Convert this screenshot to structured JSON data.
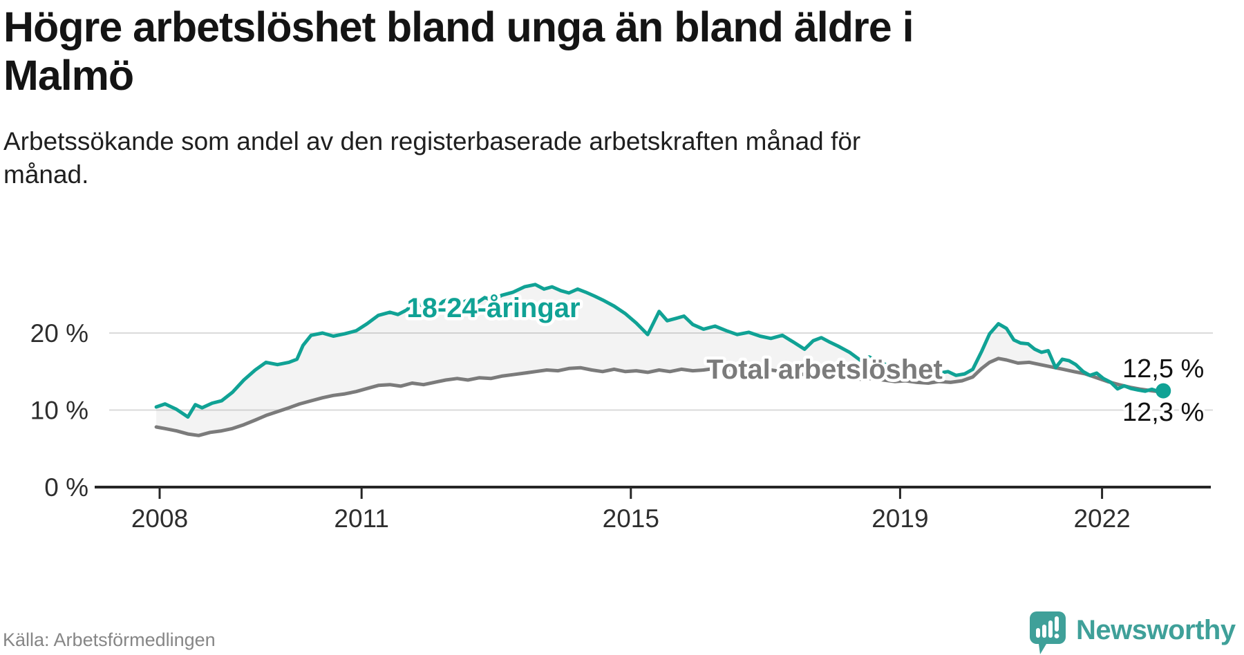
{
  "header": {
    "title_lines": [
      "Högre arbetslöshet bland unga än bland äldre i",
      "Malmö"
    ],
    "subtitle_lines": [
      "Arbetssökande som andel av den registerbaserade arbetskraften månad för",
      "månad."
    ]
  },
  "footer": {
    "source": "Källa: Arbetsförmedlingen",
    "brand": "Newsworthy"
  },
  "colors": {
    "accent_teal": "#10A295",
    "line_gray": "#7B7B7B",
    "fill_between": "rgba(125,125,125,0.09)",
    "grid": "#DADADA",
    "axis": "#262626",
    "tick_text": "#2E2E2E",
    "value_text": "#111111",
    "source_text": "#868686",
    "brand_teal": "#3FA099"
  },
  "chart_data": {
    "type": "line",
    "title": "Högre arbetslöshet bland unga än bland äldre i Malmö",
    "subtitle": "Arbetssökande som andel av den registerbaserade arbetskraften månad för månad.",
    "source": "Källa: Arbetsförmedlingen",
    "x_unit": "year (monthly observations)",
    "xlim": [
      2007.95,
      2023.3
    ],
    "ylim": [
      0,
      27
    ],
    "grid": "horizontal",
    "legend_position": "inline-labels",
    "y_ticks": [
      {
        "value": 0,
        "label": "0 %"
      },
      {
        "value": 10,
        "label": "10 %"
      },
      {
        "value": 20,
        "label": "20 %"
      }
    ],
    "x_ticks": [
      {
        "value": 2008,
        "label": "2008"
      },
      {
        "value": 2011,
        "label": "2011"
      },
      {
        "value": 2015,
        "label": "2015"
      },
      {
        "value": 2019,
        "label": "2019"
      },
      {
        "value": 2022,
        "label": "2022"
      }
    ],
    "series": [
      {
        "name": "18-24-åringar",
        "color": "#10A295",
        "end_label": "12,5 %",
        "end_value": 12.5,
        "points": [
          [
            2007.95,
            10.4
          ],
          [
            2008.08,
            10.8
          ],
          [
            2008.25,
            10.1
          ],
          [
            2008.42,
            9.1
          ],
          [
            2008.53,
            10.7
          ],
          [
            2008.63,
            10.3
          ],
          [
            2008.78,
            10.9
          ],
          [
            2008.92,
            11.2
          ],
          [
            2009.08,
            12.3
          ],
          [
            2009.25,
            13.9
          ],
          [
            2009.42,
            15.2
          ],
          [
            2009.58,
            16.2
          ],
          [
            2009.75,
            15.9
          ],
          [
            2009.92,
            16.2
          ],
          [
            2010.04,
            16.6
          ],
          [
            2010.13,
            18.4
          ],
          [
            2010.25,
            19.7
          ],
          [
            2010.42,
            20.0
          ],
          [
            2010.58,
            19.6
          ],
          [
            2010.75,
            19.9
          ],
          [
            2010.92,
            20.3
          ],
          [
            2011.08,
            21.2
          ],
          [
            2011.25,
            22.3
          ],
          [
            2011.42,
            22.7
          ],
          [
            2011.54,
            22.4
          ],
          [
            2011.67,
            23.0
          ],
          [
            2011.79,
            24.0
          ],
          [
            2011.92,
            23.5
          ],
          [
            2012.08,
            22.9
          ],
          [
            2012.21,
            24.1
          ],
          [
            2012.33,
            24.5
          ],
          [
            2012.46,
            23.8
          ],
          [
            2012.58,
            24.3
          ],
          [
            2012.71,
            23.9
          ],
          [
            2012.83,
            24.6
          ],
          [
            2012.96,
            24.2
          ],
          [
            2013.08,
            24.9
          ],
          [
            2013.25,
            25.3
          ],
          [
            2013.42,
            26.0
          ],
          [
            2013.58,
            26.3
          ],
          [
            2013.71,
            25.7
          ],
          [
            2013.83,
            26.0
          ],
          [
            2013.96,
            25.5
          ],
          [
            2014.08,
            25.2
          ],
          [
            2014.21,
            25.7
          ],
          [
            2014.33,
            25.3
          ],
          [
            2014.46,
            24.8
          ],
          [
            2014.58,
            24.3
          ],
          [
            2014.75,
            23.5
          ],
          [
            2014.92,
            22.5
          ],
          [
            2015.08,
            21.3
          ],
          [
            2015.25,
            19.8
          ],
          [
            2015.42,
            22.8
          ],
          [
            2015.54,
            21.6
          ],
          [
            2015.67,
            21.9
          ],
          [
            2015.79,
            22.2
          ],
          [
            2015.92,
            21.1
          ],
          [
            2016.08,
            20.5
          ],
          [
            2016.25,
            20.9
          ],
          [
            2016.42,
            20.3
          ],
          [
            2016.58,
            19.8
          ],
          [
            2016.75,
            20.1
          ],
          [
            2016.92,
            19.6
          ],
          [
            2017.08,
            19.3
          ],
          [
            2017.25,
            19.7
          ],
          [
            2017.42,
            18.8
          ],
          [
            2017.58,
            17.9
          ],
          [
            2017.71,
            19.0
          ],
          [
            2017.83,
            19.4
          ],
          [
            2017.96,
            18.8
          ],
          [
            2018.08,
            18.3
          ],
          [
            2018.25,
            17.5
          ],
          [
            2018.42,
            16.4
          ],
          [
            2018.54,
            16.9
          ],
          [
            2018.67,
            16.3
          ],
          [
            2018.79,
            15.9
          ],
          [
            2018.92,
            15.6
          ],
          [
            2019.08,
            15.9
          ],
          [
            2019.21,
            15.3
          ],
          [
            2019.33,
            14.9
          ],
          [
            2019.46,
            15.2
          ],
          [
            2019.58,
            14.8
          ],
          [
            2019.71,
            15.0
          ],
          [
            2019.83,
            14.5
          ],
          [
            2019.96,
            14.7
          ],
          [
            2020.08,
            15.3
          ],
          [
            2020.21,
            17.6
          ],
          [
            2020.33,
            19.9
          ],
          [
            2020.46,
            21.2
          ],
          [
            2020.58,
            20.6
          ],
          [
            2020.69,
            19.1
          ],
          [
            2020.79,
            18.7
          ],
          [
            2020.9,
            18.6
          ],
          [
            2021.0,
            17.9
          ],
          [
            2021.1,
            17.5
          ],
          [
            2021.2,
            17.7
          ],
          [
            2021.31,
            15.5
          ],
          [
            2021.41,
            16.6
          ],
          [
            2021.51,
            16.4
          ],
          [
            2021.61,
            15.9
          ],
          [
            2021.72,
            15.0
          ],
          [
            2021.82,
            14.5
          ],
          [
            2021.92,
            14.8
          ],
          [
            2022.02,
            14.1
          ],
          [
            2022.13,
            13.6
          ],
          [
            2022.23,
            12.75
          ],
          [
            2022.33,
            13.15
          ],
          [
            2022.43,
            12.8
          ],
          [
            2022.54,
            12.6
          ],
          [
            2022.64,
            12.45
          ],
          [
            2022.74,
            12.7
          ],
          [
            2022.83,
            12.45
          ],
          [
            2022.91,
            12.5
          ]
        ]
      },
      {
        "name": "Total arbetslöshet",
        "color": "#7B7B7B",
        "end_label": "12,3 %",
        "end_value": 12.3,
        "points": [
          [
            2007.95,
            7.8
          ],
          [
            2008.08,
            7.6
          ],
          [
            2008.25,
            7.3
          ],
          [
            2008.42,
            6.9
          ],
          [
            2008.58,
            6.7
          ],
          [
            2008.75,
            7.1
          ],
          [
            2008.92,
            7.3
          ],
          [
            2009.08,
            7.6
          ],
          [
            2009.25,
            8.1
          ],
          [
            2009.42,
            8.7
          ],
          [
            2009.58,
            9.3
          ],
          [
            2009.75,
            9.8
          ],
          [
            2009.92,
            10.3
          ],
          [
            2010.08,
            10.8
          ],
          [
            2010.25,
            11.2
          ],
          [
            2010.42,
            11.6
          ],
          [
            2010.58,
            11.9
          ],
          [
            2010.75,
            12.1
          ],
          [
            2010.92,
            12.4
          ],
          [
            2011.08,
            12.8
          ],
          [
            2011.25,
            13.2
          ],
          [
            2011.42,
            13.3
          ],
          [
            2011.58,
            13.1
          ],
          [
            2011.75,
            13.5
          ],
          [
            2011.92,
            13.3
          ],
          [
            2012.08,
            13.6
          ],
          [
            2012.25,
            13.9
          ],
          [
            2012.42,
            14.1
          ],
          [
            2012.58,
            13.9
          ],
          [
            2012.75,
            14.2
          ],
          [
            2012.92,
            14.1
          ],
          [
            2013.08,
            14.4
          ],
          [
            2013.25,
            14.6
          ],
          [
            2013.42,
            14.8
          ],
          [
            2013.58,
            15.0
          ],
          [
            2013.75,
            15.2
          ],
          [
            2013.92,
            15.1
          ],
          [
            2014.08,
            15.4
          ],
          [
            2014.25,
            15.5
          ],
          [
            2014.42,
            15.2
          ],
          [
            2014.58,
            15.0
          ],
          [
            2014.75,
            15.3
          ],
          [
            2014.92,
            15.0
          ],
          [
            2015.08,
            15.1
          ],
          [
            2015.25,
            14.9
          ],
          [
            2015.42,
            15.2
          ],
          [
            2015.58,
            15.0
          ],
          [
            2015.75,
            15.3
          ],
          [
            2015.92,
            15.1
          ],
          [
            2016.08,
            15.2
          ],
          [
            2016.25,
            15.4
          ],
          [
            2016.42,
            15.2
          ],
          [
            2016.58,
            15.1
          ],
          [
            2016.75,
            15.3
          ],
          [
            2016.92,
            15.1
          ],
          [
            2017.08,
            15.2
          ],
          [
            2017.25,
            15.0
          ],
          [
            2017.42,
            14.8
          ],
          [
            2017.58,
            14.6
          ],
          [
            2017.75,
            14.7
          ],
          [
            2017.92,
            14.5
          ],
          [
            2018.08,
            14.4
          ],
          [
            2018.25,
            14.2
          ],
          [
            2018.42,
            14.0
          ],
          [
            2018.58,
            14.1
          ],
          [
            2018.75,
            13.9
          ],
          [
            2018.92,
            13.7
          ],
          [
            2019.08,
            13.8
          ],
          [
            2019.25,
            13.6
          ],
          [
            2019.42,
            13.5
          ],
          [
            2019.58,
            13.7
          ],
          [
            2019.75,
            13.6
          ],
          [
            2019.92,
            13.8
          ],
          [
            2020.08,
            14.3
          ],
          [
            2020.21,
            15.4
          ],
          [
            2020.33,
            16.2
          ],
          [
            2020.46,
            16.7
          ],
          [
            2020.58,
            16.5
          ],
          [
            2020.75,
            16.1
          ],
          [
            2020.92,
            16.2
          ],
          [
            2021.08,
            15.9
          ],
          [
            2021.25,
            15.6
          ],
          [
            2021.42,
            15.3
          ],
          [
            2021.58,
            15.0
          ],
          [
            2021.75,
            14.7
          ],
          [
            2021.92,
            14.2
          ],
          [
            2022.08,
            13.7
          ],
          [
            2022.25,
            13.3
          ],
          [
            2022.42,
            12.95
          ],
          [
            2022.58,
            12.7
          ],
          [
            2022.74,
            12.5
          ],
          [
            2022.83,
            12.4
          ],
          [
            2022.91,
            12.3
          ]
        ]
      }
    ]
  }
}
